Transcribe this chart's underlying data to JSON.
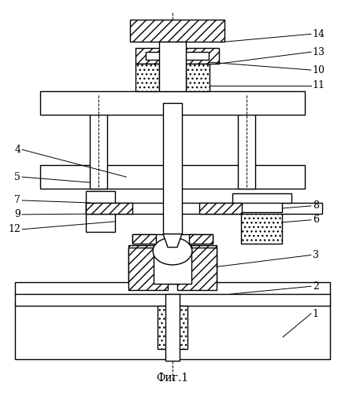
{
  "title": "Фиг.1",
  "bg": "#ffffff",
  "lc": "#000000"
}
